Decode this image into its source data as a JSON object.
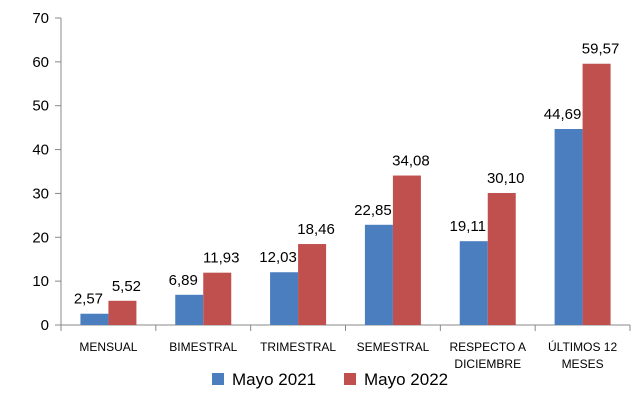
{
  "chart_data": {
    "type": "bar",
    "categories": [
      [
        "MENSUAL"
      ],
      [
        "BIMESTRAL"
      ],
      [
        "TRIMESTRAL"
      ],
      [
        "SEMESTRAL"
      ],
      [
        "RESPECTO A",
        "DICIEMBRE"
      ],
      [
        "ÚLTIMOS 12",
        "MESES"
      ]
    ],
    "series": [
      {
        "name": "Mayo 2021",
        "color": "#4a7ebf",
        "values": [
          2.57,
          6.89,
          12.03,
          22.85,
          19.11,
          44.69
        ],
        "labels": [
          "2,57",
          "6,89",
          "12,03",
          "22,85",
          "19,11",
          "44,69"
        ]
      },
      {
        "name": "Mayo 2022",
        "color": "#c0504d",
        "values": [
          5.52,
          11.93,
          18.46,
          34.08,
          30.1,
          59.57
        ],
        "labels": [
          "5,52",
          "11,93",
          "18,46",
          "34,08",
          "30,10",
          "59,57"
        ]
      }
    ],
    "ylim": [
      0,
      70
    ],
    "yticks": [
      "0",
      "10",
      "20",
      "30",
      "40",
      "50",
      "60",
      "70"
    ],
    "grid": false,
    "legend_position": "bottom"
  }
}
